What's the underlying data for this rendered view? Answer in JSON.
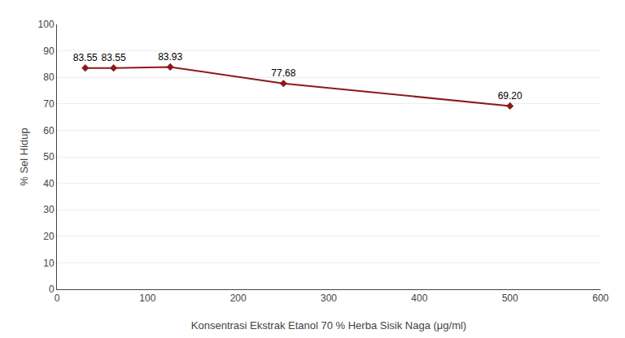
{
  "chart_data": {
    "type": "line",
    "x": [
      31.25,
      62.5,
      125,
      250,
      500
    ],
    "values": [
      83.55,
      83.55,
      83.93,
      77.68,
      69.2
    ],
    "value_labels": [
      "83.55",
      "83.55",
      "83.93",
      "77.68",
      "69.20"
    ],
    "data_labels": true,
    "color": "#8B1A1A",
    "marker": "diamond",
    "line_style": "solid",
    "xlabel": "Konsentrasi Ekstrak Etanol 70 % Herba Sisik Naga (μg/ml)",
    "ylabel": "% Sel Hidup",
    "xlim": [
      0,
      600
    ],
    "ylim": [
      0,
      100
    ],
    "xticks": [
      0,
      100,
      200,
      300,
      400,
      500,
      600
    ],
    "yticks": [
      0,
      10,
      20,
      30,
      40,
      50,
      60,
      70,
      80,
      90,
      100
    ],
    "grid": "y"
  }
}
